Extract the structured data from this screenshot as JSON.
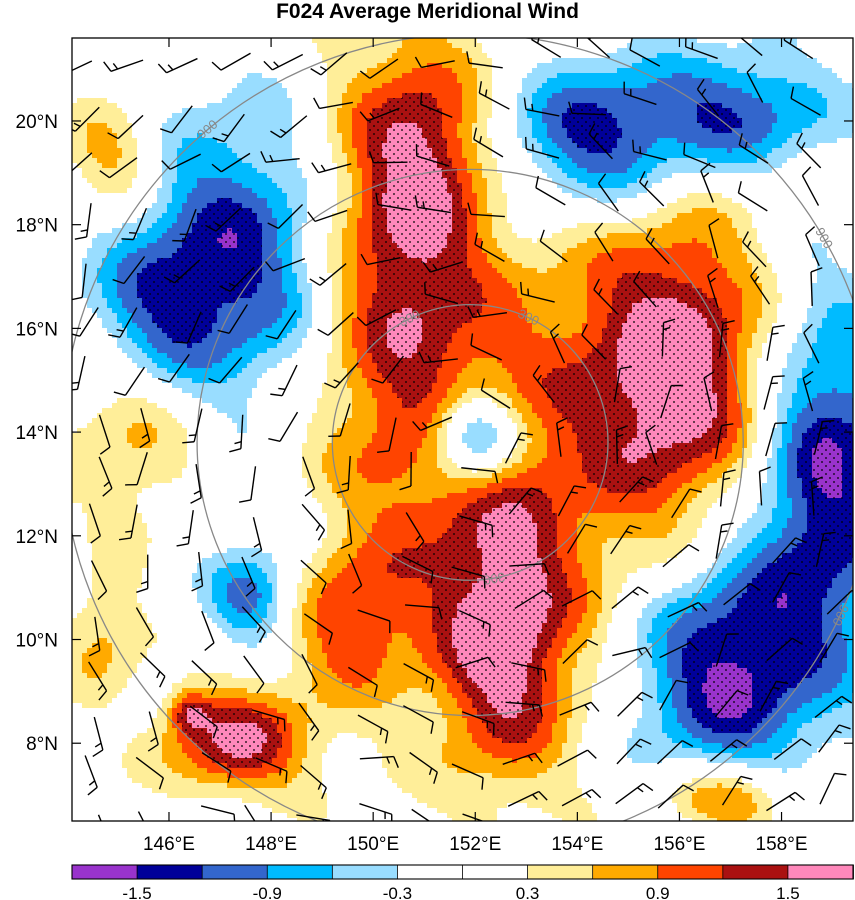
{
  "chart_data": {
    "type": "heatmap",
    "title": "F024 Average Meridional Wind",
    "x_ticks": [
      {
        "label": "146°E",
        "value": 146
      },
      {
        "label": "148°E",
        "value": 148
      },
      {
        "label": "150°E",
        "value": 150
      },
      {
        "label": "152°E",
        "value": 152
      },
      {
        "label": "154°E",
        "value": 154
      },
      {
        "label": "156°E",
        "value": 156
      },
      {
        "label": "158°E",
        "value": 158
      }
    ],
    "y_ticks": [
      {
        "label": "20°N",
        "value": 20
      },
      {
        "label": "18°N",
        "value": 18
      },
      {
        "label": "16°N",
        "value": 16
      },
      {
        "label": "14°N",
        "value": 14
      },
      {
        "label": "12°N",
        "value": 12
      },
      {
        "label": "10°N",
        "value": 10
      },
      {
        "label": "8°N",
        "value": 8
      }
    ],
    "xlim": [
      144.1,
      159.4
    ],
    "ylim": [
      6.5,
      21.6
    ],
    "levels": [
      -1.8,
      -1.5,
      -1.2,
      -0.9,
      -0.6,
      -0.3,
      0,
      0.3,
      0.6,
      0.9,
      1.2,
      1.5,
      1.8
    ],
    "colorbar_labels": [
      "-1.5",
      "-0.9",
      "-0.3",
      "0.3",
      "0.9",
      "1.5"
    ],
    "colorbar_label_levels": [
      -1.5,
      -0.9,
      -0.3,
      0.3,
      0.9,
      1.5
    ],
    "colors": [
      "#9933cc",
      "#000099",
      "#3366cc",
      "#00bbff",
      "#99ddff",
      "#ffffff",
      "#ffffff",
      "#ffee99",
      "#ffaa00",
      "#ff4400",
      "#aa1111",
      "#ff88bb"
    ],
    "range_rings": [
      {
        "label": "300",
        "radius_deg": 2.7
      },
      {
        "label": "900",
        "radius_deg": 8.0
      }
    ],
    "ring_center": [
      151.9,
      13.8
    ],
    "stippling": "significant areas stippled",
    "wind_barbs": "overlay"
  }
}
